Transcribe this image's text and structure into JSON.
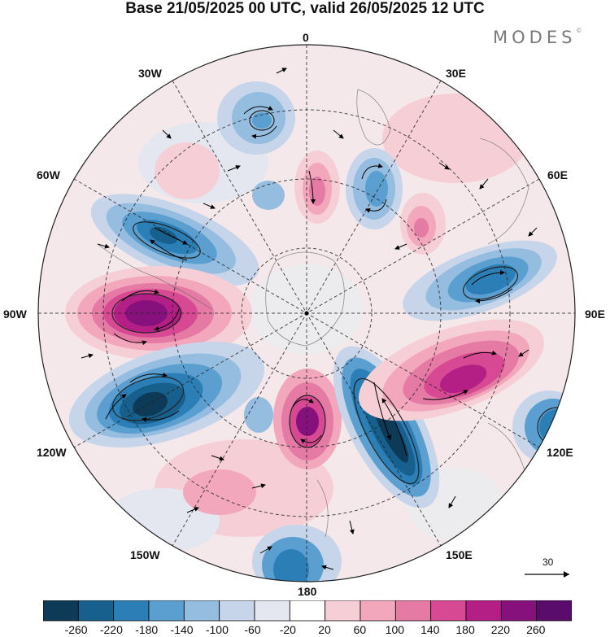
{
  "title": "Base 21/05/2025 00 UTC, valid 26/05/2025 12 UTC",
  "brand": "MODES",
  "brand_mark": "©",
  "longitude_labels": {
    "top": "0",
    "top_left": "30W",
    "top_right": "30E",
    "upper_left": "60W",
    "upper_right": "60E",
    "left": "90W",
    "right": "90E",
    "lower_left": "120W",
    "lower_right": "120E",
    "bottom_left": "150W",
    "bottom_right": "150E",
    "bottom": "180"
  },
  "reference_vector": {
    "label": "30"
  },
  "colorbar": {
    "labels": [
      "-260",
      "-220",
      "-180",
      "-140",
      "-100",
      "-60",
      "-20",
      "20",
      "60",
      "100",
      "140",
      "180",
      "220",
      "260"
    ],
    "colors": [
      "#0d3a56",
      "#175f8c",
      "#2b7fb6",
      "#5a9fcf",
      "#95bde0",
      "#c6d5ea",
      "#e4e6f0",
      "#ffffff",
      "#f6cfd6",
      "#f2a7bd",
      "#e57aa5",
      "#d74a93",
      "#b41f86",
      "#86117d",
      "#5a0c6c"
    ]
  },
  "anomaly_centers": [
    {
      "sign": "negative",
      "level": -140,
      "lon_label": "30W"
    },
    {
      "sign": "negative",
      "level": -260,
      "lon_label": "75W"
    },
    {
      "sign": "positive",
      "level": 260,
      "lon_label": "90W"
    },
    {
      "sign": "negative",
      "level": -260,
      "lon_label": "115W"
    },
    {
      "sign": "negative",
      "level": -220,
      "lon_label": "150E"
    },
    {
      "sign": "positive",
      "level": 220,
      "lon_label": "180"
    },
    {
      "sign": "positive",
      "level": 180,
      "lon_label": "105E"
    },
    {
      "sign": "negative",
      "level": -180,
      "lon_label": "80E"
    },
    {
      "sign": "negative",
      "level": -140,
      "lon_label": "20E"
    },
    {
      "sign": "positive",
      "level": 100,
      "lon_label": "0"
    },
    {
      "sign": "positive",
      "level": 100,
      "lon_label": "45E"
    },
    {
      "sign": "negative",
      "level": -180,
      "lon_label": "180"
    },
    {
      "sign": "negative",
      "level": -140,
      "lon_label": "120E"
    }
  ]
}
